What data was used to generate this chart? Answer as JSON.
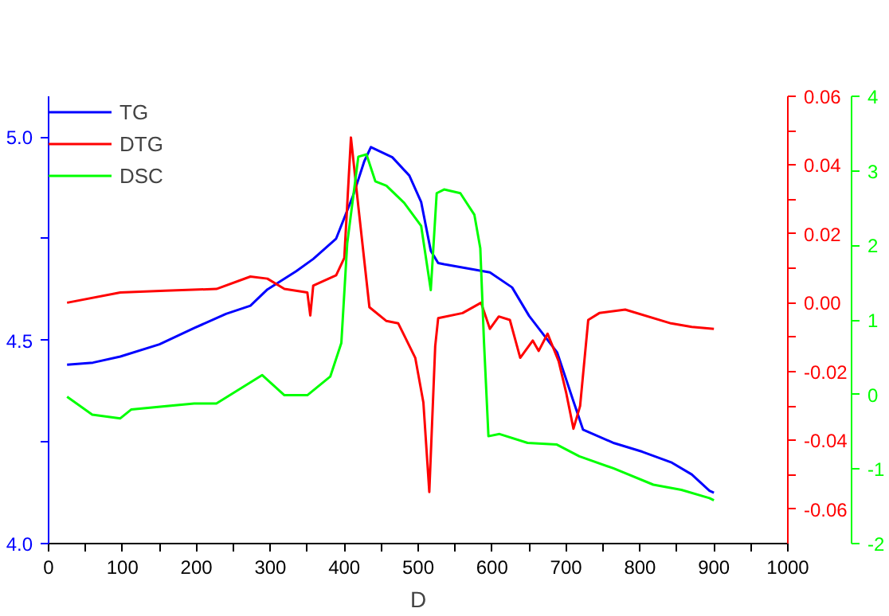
{
  "chart_data": {
    "type": "line",
    "xlabel": "D",
    "legend": "top left",
    "grid": false,
    "xlim": [
      0,
      1000
    ],
    "xticks": [
      0,
      {
        "value": 50,
        "label": null
      },
      100,
      {
        "value": 150,
        "label": null
      },
      200,
      {
        "value": 250,
        "label": null
      },
      300,
      {
        "value": 350,
        "label": null
      },
      400,
      {
        "value": 450,
        "label": null
      },
      500,
      {
        "value": 550,
        "label": null
      },
      600,
      {
        "value": 650,
        "label": null
      },
      700,
      {
        "value": 750,
        "label": null
      },
      800,
      {
        "value": 850,
        "label": null
      },
      900,
      {
        "value": 950,
        "label": null
      },
      1000
    ],
    "ylim": [
      4.0,
      5.1
    ],
    "yticks": [
      {
        "value": 4.0,
        "label": "4.0"
      },
      {
        "value": 4.25,
        "label": null
      },
      4.5,
      {
        "value": 4.75,
        "label": null
      },
      {
        "value": 5.0,
        "label": "5.0"
      }
    ],
    "y2lim": [
      -0.07,
      0.06
    ],
    "y2ticks": [
      -0.06,
      {
        "value": -0.05,
        "label": null
      },
      -0.04,
      {
        "value": -0.03,
        "label": null
      },
      -0.02,
      {
        "value": -0.01,
        "label": null
      },
      {
        "value": 0,
        "label": "0.00"
      },
      {
        "value": 0.01,
        "label": null
      },
      0.02,
      {
        "value": 0.03,
        "label": null
      },
      0.04,
      {
        "value": 0.05,
        "label": null
      },
      0.06
    ],
    "y3lim": [
      -2,
      4
    ],
    "y3ticks": [
      -2,
      -1,
      0,
      1,
      2,
      3,
      4
    ],
    "series": [
      {
        "name": "TG",
        "color": "#0000ff",
        "x": [
          25,
          60,
          97,
          150,
          197,
          240,
          273,
          296,
          335,
          358,
          389,
          412,
          427,
          436,
          465,
          488,
          504,
          517,
          527,
          535,
          597,
          627,
          650,
          688,
          710,
          723,
          765,
          803,
          842,
          870,
          894,
          900
        ],
        "values": [
          4.44,
          4.445,
          4.46,
          4.49,
          4.53,
          4.565,
          4.585,
          4.625,
          4.67,
          4.7,
          4.75,
          4.856,
          4.94,
          4.975,
          4.95,
          4.905,
          4.84,
          4.72,
          4.69,
          4.687,
          4.667,
          4.63,
          4.56,
          4.47,
          4.35,
          4.28,
          4.247,
          4.226,
          4.2,
          4.17,
          4.13,
          4.125
        ]
      },
      {
        "name": "DTG",
        "color": "#ff0000",
        "axis": "y2",
        "x": [
          25,
          97,
          158,
          227,
          273,
          296,
          319,
          350,
          354,
          358,
          389,
          400,
          409,
          419,
          434,
          457,
          473,
          496,
          507,
          515,
          523,
          527,
          560,
          585,
          597,
          609,
          624,
          638,
          655,
          663,
          675,
          690,
          700,
          710,
          719,
          730,
          745,
          780,
          842,
          870,
          900
        ],
        "values": [
          0.0,
          0.003,
          0.0035,
          0.004,
          0.0076,
          0.007,
          0.004,
          0.003,
          -0.0037,
          0.005,
          0.008,
          0.013,
          0.048,
          0.028,
          -0.0013,
          -0.0053,
          -0.006,
          -0.016,
          -0.029,
          -0.055,
          -0.0126,
          -0.0045,
          -0.003,
          0.0,
          -0.0076,
          -0.004,
          -0.005,
          -0.016,
          -0.011,
          -0.014,
          -0.009,
          -0.017,
          -0.026,
          -0.0366,
          -0.03,
          -0.005,
          -0.003,
          -0.002,
          -0.006,
          -0.007,
          -0.0076
        ]
      },
      {
        "name": "DSC",
        "color": "#00ff00",
        "axis": "y3",
        "x": [
          25,
          59,
          97,
          112,
          197,
          227,
          289,
          319,
          350,
          381,
          396,
          404,
          419,
          430,
          442,
          457,
          481,
          504,
          517,
          525,
          535,
          557,
          576,
          584,
          589,
          595,
          610,
          648,
          687,
          718,
          764,
          818,
          856,
          894,
          900
        ],
        "values": [
          -0.03,
          -0.27,
          -0.32,
          -0.2,
          -0.12,
          -0.12,
          0.26,
          -0.01,
          -0.01,
          0.24,
          0.69,
          2.03,
          3.19,
          3.22,
          2.86,
          2.8,
          2.57,
          2.26,
          1.4,
          2.7,
          2.75,
          2.7,
          2.41,
          1.96,
          0.7,
          -0.56,
          -0.53,
          -0.65,
          -0.67,
          -0.83,
          -0.99,
          -1.21,
          -1.28,
          -1.39,
          -1.42
        ]
      }
    ]
  }
}
